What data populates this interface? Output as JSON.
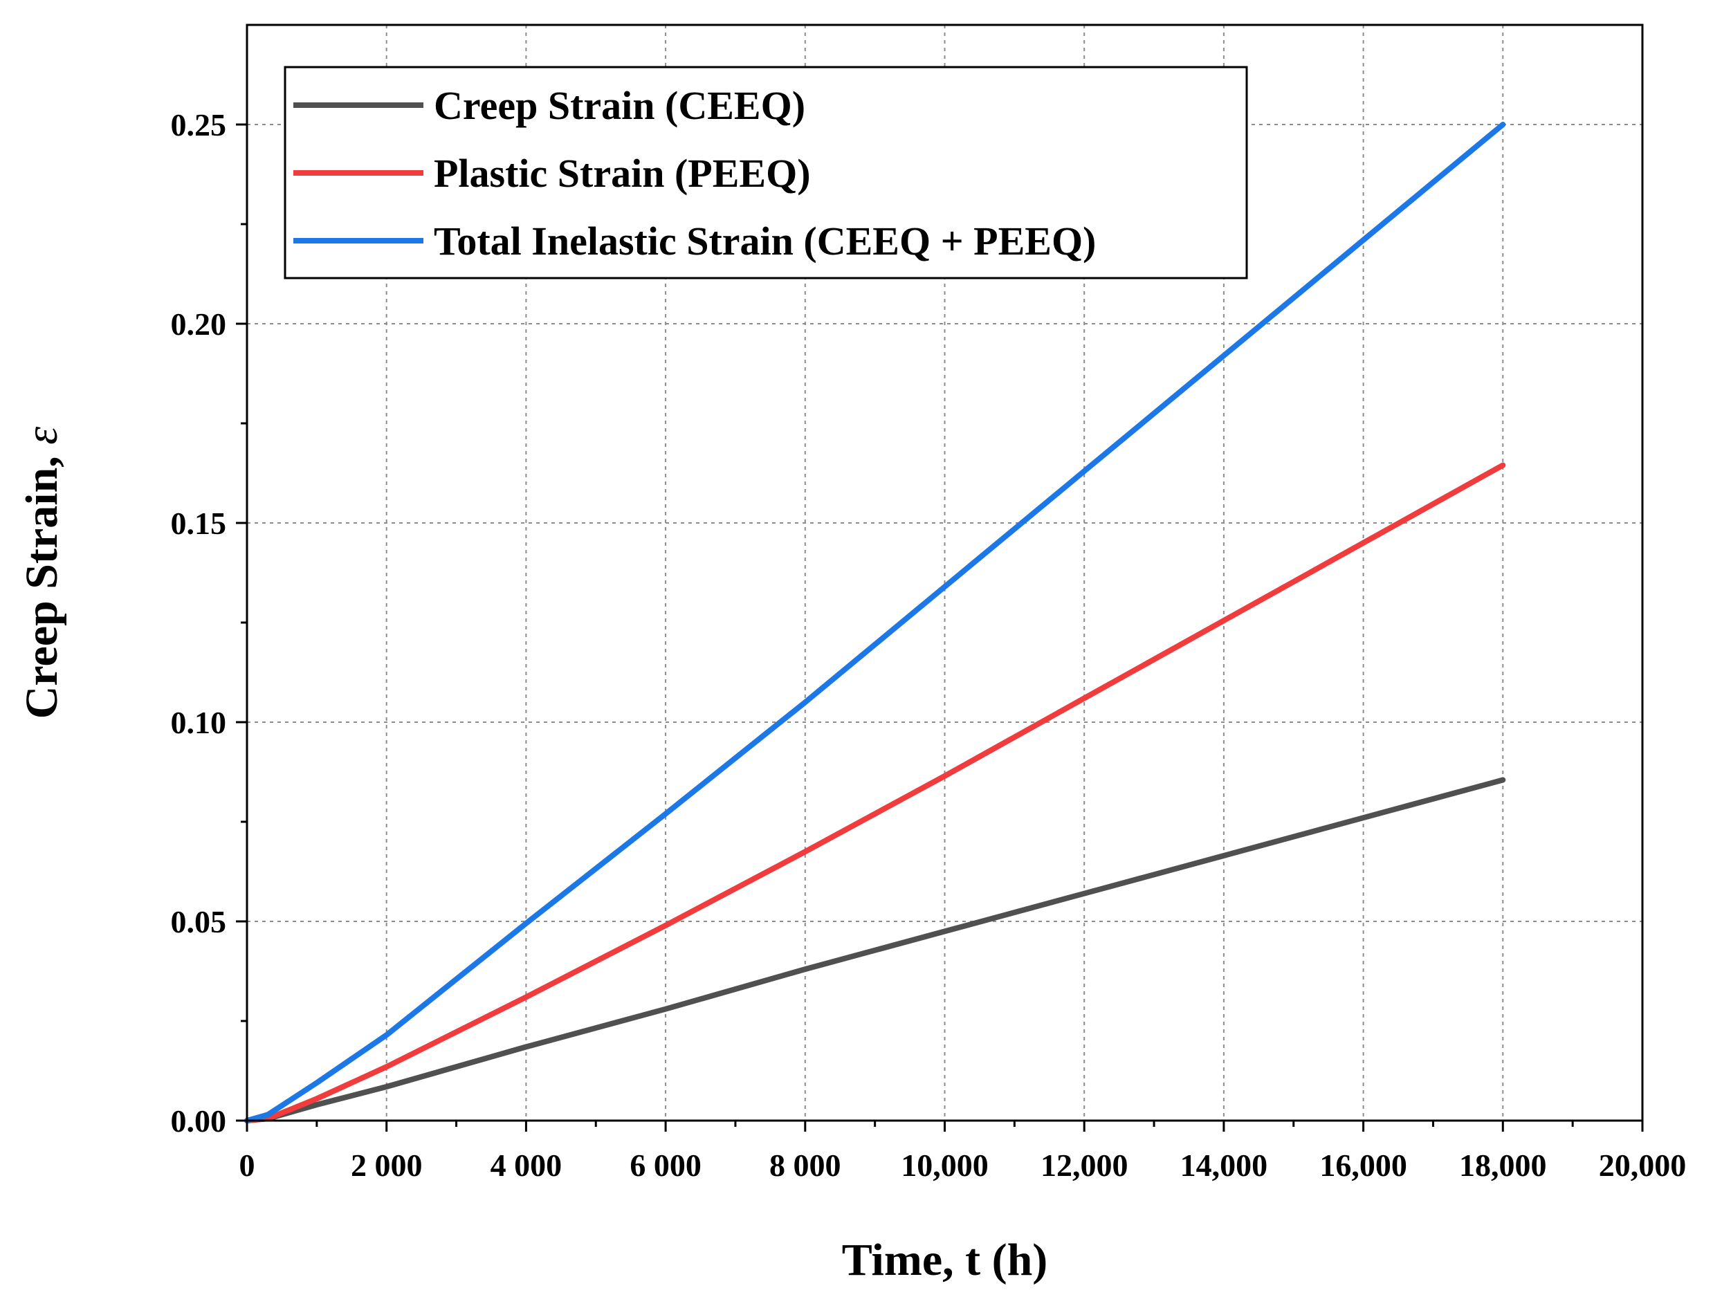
{
  "chart_data": {
    "type": "line",
    "xlabel": "Time, t (h)",
    "ylabel": "Creep Strain, ",
    "ylabel_symbol": "ε",
    "xlim": [
      0,
      20000
    ],
    "ylim": [
      0,
      0.275
    ],
    "x_ticks": [
      0,
      2000,
      4000,
      6000,
      8000,
      10000,
      12000,
      14000,
      16000,
      18000,
      20000
    ],
    "x_tick_labels": [
      "0",
      "2 000",
      "4 000",
      "6 000",
      "8 000",
      "10,000",
      "12,000",
      "14,000",
      "16,000",
      "18,000",
      "20,000"
    ],
    "y_ticks": [
      0,
      0.05,
      0.1,
      0.15,
      0.2,
      0.25
    ],
    "y_tick_labels": [
      "0.00",
      "0.05",
      "0.10",
      "0.15",
      "0.20",
      "0.25"
    ],
    "grid": true,
    "legend_position": "top-left",
    "series": [
      {
        "name": "Creep Strain (CEEQ)",
        "color": "#505050",
        "x": [
          0,
          300,
          1000,
          2000,
          4000,
          6000,
          8000,
          10000,
          12000,
          14000,
          16000,
          18000
        ],
        "y": [
          0,
          0.0005,
          0.004,
          0.0085,
          0.0185,
          0.028,
          0.038,
          0.0475,
          0.057,
          0.0665,
          0.076,
          0.0855
        ]
      },
      {
        "name": "Plastic Strain (PEEQ)",
        "color": "#f03c3c",
        "x": [
          0,
          300,
          1000,
          2000,
          4000,
          6000,
          8000,
          10000,
          12000,
          14000,
          16000,
          18000
        ],
        "y": [
          0,
          0.0005,
          0.0055,
          0.0135,
          0.031,
          0.049,
          0.0675,
          0.0865,
          0.106,
          0.1255,
          0.145,
          0.1645
        ]
      },
      {
        "name": "Total Inelastic Strain (CEEQ + PEEQ)",
        "color": "#1c78e6",
        "x": [
          0,
          300,
          1000,
          2000,
          4000,
          6000,
          8000,
          10000,
          12000,
          14000,
          16000,
          18000
        ],
        "y": [
          0,
          0.0015,
          0.0095,
          0.0215,
          0.0495,
          0.077,
          0.105,
          0.134,
          0.163,
          0.192,
          0.221,
          0.25
        ]
      }
    ]
  }
}
